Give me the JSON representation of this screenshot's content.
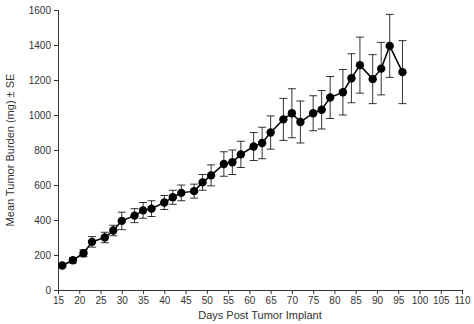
{
  "chart_data": {
    "type": "line",
    "x_label": "Days Post Tumor Implant",
    "y_label": "Mean Tumor Burden (mg) ± SE",
    "x": [
      16,
      18.5,
      21,
      23,
      26,
      28,
      30,
      33,
      35,
      37,
      40,
      42,
      44,
      47,
      49,
      51,
      54,
      56,
      58,
      61,
      63,
      65,
      68,
      70,
      72,
      75,
      77,
      79,
      82,
      84,
      86,
      89,
      91,
      93,
      96
    ],
    "values": [
      140,
      170,
      210,
      275,
      300,
      340,
      395,
      425,
      455,
      465,
      500,
      530,
      555,
      565,
      615,
      655,
      720,
      730,
      775,
      820,
      840,
      900,
      975,
      1010,
      960,
      1010,
      1030,
      1100,
      1130,
      1210,
      1285,
      1205,
      1265,
      1395,
      1245
    ],
    "errors": [
      10,
      15,
      20,
      30,
      30,
      30,
      50,
      40,
      45,
      45,
      40,
      40,
      45,
      40,
      45,
      60,
      70,
      70,
      75,
      80,
      90,
      95,
      120,
      140,
      120,
      100,
      110,
      120,
      130,
      140,
      160,
      140,
      150,
      180,
      180
    ],
    "color": "#000000",
    "marker": "circle",
    "xlim": [
      15,
      110
    ],
    "xticks": [
      15,
      20,
      25,
      30,
      35,
      40,
      45,
      50,
      55,
      60,
      65,
      70,
      75,
      80,
      85,
      90,
      95,
      100,
      105,
      110
    ],
    "ylim": [
      0,
      1600
    ],
    "yticks": [
      0,
      200,
      400,
      600,
      800,
      1000,
      1200,
      1400,
      1600
    ],
    "grid": false
  }
}
